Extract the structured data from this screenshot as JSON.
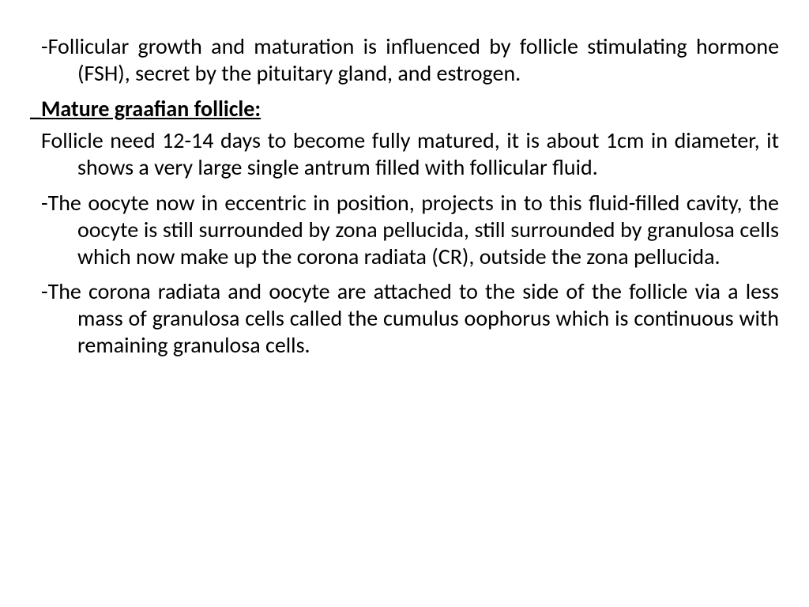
{
  "text_color": "#000000",
  "background_color": "#ffffff",
  "font_family": "Calibri, Arial, sans-serif",
  "body_fontsize": 28,
  "heading_fontsize": 28,
  "p1": "-Follicular growth and maturation is influenced by follicle stimulating hormone (FSH), secret by the pituitary gland, and estrogen.",
  "heading": "_Mature graafian follicle:",
  "p2": "Follicle need 12-14 days to become fully matured, it is about 1cm in diameter, it shows a very large single antrum filled with follicular fluid.",
  "p3": "-The oocyte now in eccentric in position, projects in to this fluid-filled cavity, the oocyte is still surrounded by zona pellucida, still surrounded by granulosa cells which now make up the corona radiata (CR), outside the zona pellucida.",
  "p4": "-The corona radiata and oocyte are attached to the side of the follicle via a less mass of granulosa cells called the cumulus oophorus which is continuous with remaining granulosa cells."
}
